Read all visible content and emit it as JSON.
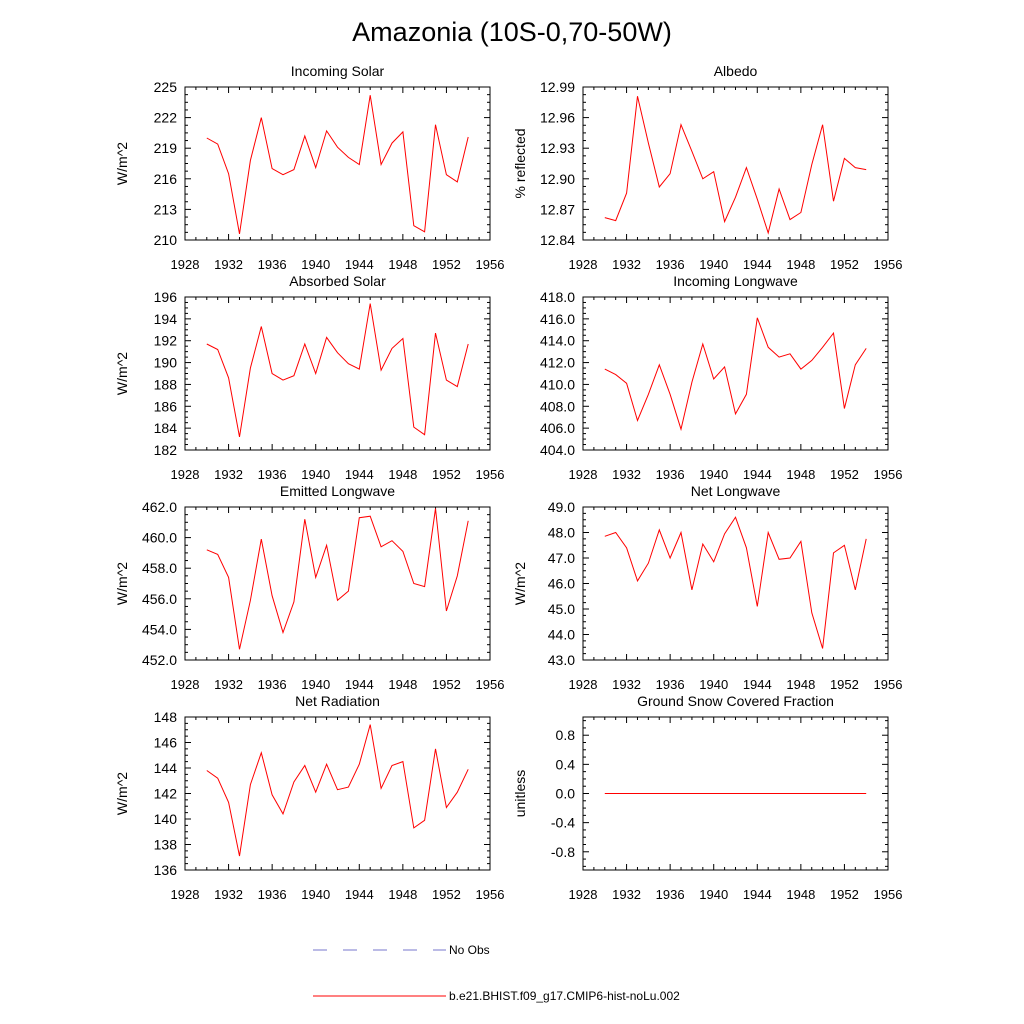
{
  "title": "Amazonia (10S-0,70-50W)",
  "colors": {
    "series": "#ff0000",
    "obs": "#7777cc",
    "axis": "#000000"
  },
  "chart_data": [
    {
      "type": "line",
      "title": "Incoming Solar",
      "xlabel": "",
      "ylabel": "W/m^2",
      "xlim": [
        1928,
        1956
      ],
      "ylim": [
        210,
        225
      ],
      "xticks": [
        "1928",
        "1932",
        "1936",
        "1940",
        "1944",
        "1948",
        "1952",
        "1956"
      ],
      "yticks": [
        "210",
        "213",
        "216",
        "219",
        "222",
        "225"
      ],
      "grid": false,
      "series": [
        {
          "name": "b.e21.BHIST.f09_g17.CMIP6-hist-noLu.002",
          "x": [
            1930,
            1931,
            1932,
            1933,
            1934,
            1935,
            1936,
            1937,
            1938,
            1939,
            1940,
            1941,
            1942,
            1943,
            1944,
            1945,
            1946,
            1947,
            1948,
            1949,
            1950,
            1951,
            1952,
            1953,
            1954
          ],
          "y": [
            220.0,
            219.4,
            216.5,
            210.6,
            217.8,
            222.0,
            217.0,
            216.4,
            216.9,
            220.2,
            217.1,
            220.7,
            219.1,
            218.1,
            217.4,
            224.2,
            217.4,
            219.5,
            220.6,
            211.4,
            210.8,
            221.3,
            216.4,
            215.7,
            220.1
          ]
        }
      ]
    },
    {
      "type": "line",
      "title": "Albedo",
      "xlabel": "",
      "ylabel": "% reflected",
      "xlim": [
        1928,
        1956
      ],
      "ylim": [
        12.84,
        12.99
      ],
      "xticks": [
        "1928",
        "1932",
        "1936",
        "1940",
        "1944",
        "1948",
        "1952",
        "1956"
      ],
      "yticks": [
        "12.84",
        "12.87",
        "12.90",
        "12.93",
        "12.96",
        "12.99"
      ],
      "grid": false,
      "series": [
        {
          "name": "b.e21.BHIST.f09_g17.CMIP6-hist-noLu.002",
          "x": [
            1930,
            1931,
            1932,
            1933,
            1934,
            1935,
            1936,
            1937,
            1938,
            1939,
            1940,
            1941,
            1942,
            1943,
            1944,
            1945,
            1946,
            1947,
            1948,
            1949,
            1950,
            1951,
            1952,
            1953,
            1954
          ],
          "y": [
            12.862,
            12.859,
            12.886,
            12.981,
            12.935,
            12.892,
            12.905,
            12.953,
            12.927,
            12.9,
            12.907,
            12.858,
            12.882,
            12.911,
            12.88,
            12.847,
            12.89,
            12.86,
            12.867,
            12.914,
            12.953,
            12.878,
            12.92,
            12.911,
            12.909
          ]
        }
      ]
    },
    {
      "type": "line",
      "title": "Absorbed Solar",
      "xlabel": "",
      "ylabel": "W/m^2",
      "xlim": [
        1928,
        1956
      ],
      "ylim": [
        182,
        196
      ],
      "xticks": [
        "1928",
        "1932",
        "1936",
        "1940",
        "1944",
        "1948",
        "1952",
        "1956"
      ],
      "yticks": [
        "182",
        "184",
        "186",
        "188",
        "190",
        "192",
        "194",
        "196"
      ],
      "grid": false,
      "series": [
        {
          "name": "b.e21.BHIST.f09_g17.CMIP6-hist-noLu.002",
          "x": [
            1930,
            1931,
            1932,
            1933,
            1934,
            1935,
            1936,
            1937,
            1938,
            1939,
            1940,
            1941,
            1942,
            1943,
            1944,
            1945,
            1946,
            1947,
            1948,
            1949,
            1950,
            1951,
            1952,
            1953,
            1954
          ],
          "y": [
            191.7,
            191.2,
            188.6,
            183.2,
            189.5,
            193.3,
            189.0,
            188.4,
            188.8,
            191.7,
            189.0,
            192.3,
            190.9,
            189.9,
            189.4,
            195.4,
            189.3,
            191.3,
            192.2,
            184.1,
            183.4,
            192.7,
            188.4,
            187.8,
            191.7
          ]
        }
      ]
    },
    {
      "type": "line",
      "title": "Incoming Longwave",
      "xlabel": "",
      "ylabel": "",
      "xlim": [
        1928,
        1956
      ],
      "ylim": [
        404,
        418
      ],
      "xticks": [
        "1928",
        "1932",
        "1936",
        "1940",
        "1944",
        "1948",
        "1952",
        "1956"
      ],
      "yticks": [
        "404.0",
        "406.0",
        "408.0",
        "410.0",
        "412.0",
        "414.0",
        "416.0",
        "418.0"
      ],
      "grid": false,
      "series": [
        {
          "name": "b.e21.BHIST.f09_g17.CMIP6-hist-noLu.002",
          "x": [
            1930,
            1931,
            1932,
            1933,
            1934,
            1935,
            1936,
            1937,
            1938,
            1939,
            1940,
            1941,
            1942,
            1943,
            1944,
            1945,
            1946,
            1947,
            1948,
            1949,
            1950,
            1951,
            1952,
            1953,
            1954
          ],
          "y": [
            411.4,
            410.9,
            410.1,
            406.7,
            409.1,
            411.8,
            409.1,
            405.9,
            410.2,
            413.7,
            410.5,
            411.6,
            407.3,
            409.1,
            416.1,
            413.4,
            412.5,
            412.8,
            411.4,
            412.2,
            413.4,
            414.7,
            407.8,
            411.8,
            413.3
          ]
        }
      ]
    },
    {
      "type": "line",
      "title": "Emitted Longwave",
      "xlabel": "",
      "ylabel": "W/m^2",
      "xlim": [
        1928,
        1956
      ],
      "ylim": [
        452,
        462
      ],
      "xticks": [
        "1928",
        "1932",
        "1936",
        "1940",
        "1944",
        "1948",
        "1952",
        "1956"
      ],
      "yticks": [
        "452.0",
        "454.0",
        "456.0",
        "458.0",
        "460.0",
        "462.0"
      ],
      "grid": false,
      "series": [
        {
          "name": "b.e21.BHIST.f09_g17.CMIP6-hist-noLu.002",
          "x": [
            1930,
            1931,
            1932,
            1933,
            1934,
            1935,
            1936,
            1937,
            1938,
            1939,
            1940,
            1941,
            1942,
            1943,
            1944,
            1945,
            1946,
            1947,
            1948,
            1949,
            1950,
            1951,
            1952,
            1953,
            1954
          ],
          "y": [
            459.2,
            458.9,
            457.4,
            452.7,
            455.9,
            459.9,
            456.2,
            453.8,
            455.8,
            461.2,
            457.4,
            459.5,
            455.9,
            456.5,
            461.3,
            461.4,
            459.4,
            459.8,
            459.1,
            457.0,
            456.8,
            461.9,
            455.2,
            457.5,
            461.1
          ]
        }
      ]
    },
    {
      "type": "line",
      "title": "Net Longwave",
      "xlabel": "",
      "ylabel": "W/m^2",
      "xlim": [
        1928,
        1956
      ],
      "ylim": [
        43,
        49
      ],
      "xticks": [
        "1928",
        "1932",
        "1936",
        "1940",
        "1944",
        "1948",
        "1952",
        "1956"
      ],
      "yticks": [
        "43.0",
        "44.0",
        "45.0",
        "46.0",
        "47.0",
        "48.0",
        "49.0"
      ],
      "grid": false,
      "series": [
        {
          "name": "b.e21.BHIST.f09_g17.CMIP6-hist-noLu.002",
          "x": [
            1930,
            1931,
            1932,
            1933,
            1934,
            1935,
            1936,
            1937,
            1938,
            1939,
            1940,
            1941,
            1942,
            1943,
            1944,
            1945,
            1946,
            1947,
            1948,
            1949,
            1950,
            1951,
            1952,
            1953,
            1954
          ],
          "y": [
            47.85,
            48.0,
            47.4,
            46.1,
            46.8,
            48.1,
            47.0,
            48.0,
            45.75,
            47.55,
            46.85,
            47.95,
            48.6,
            47.4,
            45.1,
            48.0,
            46.95,
            47.0,
            47.65,
            44.85,
            43.45,
            47.2,
            47.5,
            45.75,
            47.75
          ]
        }
      ]
    },
    {
      "type": "line",
      "title": "Net Radiation",
      "xlabel": "",
      "ylabel": "W/m^2",
      "xlim": [
        1928,
        1956
      ],
      "ylim": [
        136,
        148
      ],
      "xticks": [
        "1928",
        "1932",
        "1936",
        "1940",
        "1944",
        "1948",
        "1952",
        "1956"
      ],
      "yticks": [
        "136",
        "138",
        "140",
        "142",
        "144",
        "146",
        "148"
      ],
      "grid": false,
      "series": [
        {
          "name": "b.e21.BHIST.f09_g17.CMIP6-hist-noLu.002",
          "x": [
            1930,
            1931,
            1932,
            1933,
            1934,
            1935,
            1936,
            1937,
            1938,
            1939,
            1940,
            1941,
            1942,
            1943,
            1944,
            1945,
            1946,
            1947,
            1948,
            1949,
            1950,
            1951,
            1952,
            1953,
            1954
          ],
          "y": [
            143.8,
            143.2,
            141.3,
            137.1,
            142.7,
            145.2,
            141.9,
            140.4,
            142.9,
            144.2,
            142.1,
            144.3,
            142.3,
            142.5,
            144.3,
            147.4,
            142.4,
            144.2,
            144.5,
            139.3,
            139.9,
            145.5,
            140.9,
            142.1,
            143.9
          ]
        }
      ]
    },
    {
      "type": "line",
      "title": "Ground Snow Covered Fraction",
      "xlabel": "",
      "ylabel": "unitless",
      "xlim": [
        1928,
        1956
      ],
      "ylim": [
        -1.05,
        1.05
      ],
      "xticks": [
        "1928",
        "1932",
        "1936",
        "1940",
        "1944",
        "1948",
        "1952",
        "1956"
      ],
      "yticks": [
        "-0.8",
        "-0.4",
        "0.0",
        "0.4",
        "0.8"
      ],
      "grid": false,
      "series": [
        {
          "name": "b.e21.BHIST.f09_g17.CMIP6-hist-noLu.002",
          "x": [
            1930,
            1931,
            1932,
            1933,
            1934,
            1935,
            1936,
            1937,
            1938,
            1939,
            1940,
            1941,
            1942,
            1943,
            1944,
            1945,
            1946,
            1947,
            1948,
            1949,
            1950,
            1951,
            1952,
            1953,
            1954
          ],
          "y": [
            0,
            0,
            0,
            0,
            0,
            0,
            0,
            0,
            0,
            0,
            0,
            0,
            0,
            0,
            0,
            0,
            0,
            0,
            0,
            0,
            0,
            0,
            0,
            0,
            0
          ]
        }
      ]
    }
  ],
  "legend": {
    "placement": "bottom",
    "items": [
      {
        "label": "No Obs",
        "style": "dashed",
        "color": "#7777cc"
      },
      {
        "label": "b.e21.BHIST.f09_g17.CMIP6-hist-noLu.002",
        "style": "solid",
        "color": "#ff0000"
      }
    ]
  }
}
